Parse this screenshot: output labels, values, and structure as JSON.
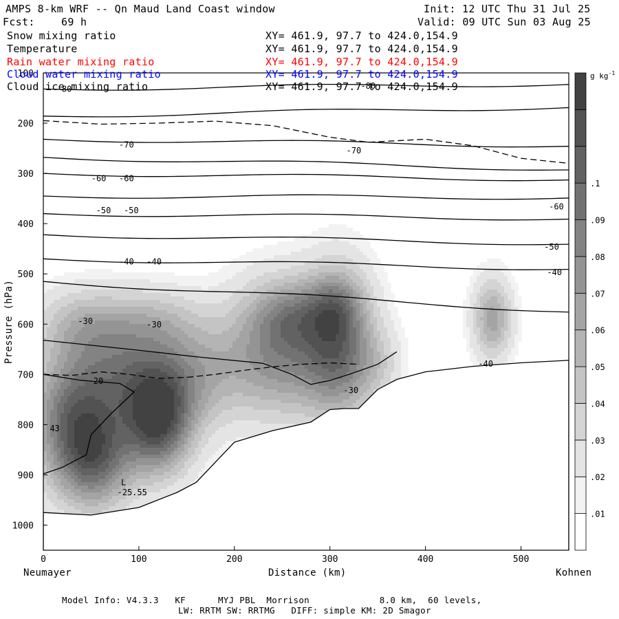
{
  "header": {
    "title": "AMPS 8-km WRF -- Qn Maud Land Coast window",
    "init": "Init: 12 UTC Thu 31 Jul 25",
    "fcst_label": "Fcst:",
    "fcst_value": "69 h",
    "valid": "Valid: 09 UTC Sun 03 Aug 25"
  },
  "fields": [
    {
      "name": "Snow mixing ratio",
      "xy": "XY= 461.9, 97.7 to 424.0,154.9",
      "color": "#000000"
    },
    {
      "name": "Temperature",
      "xy": "XY= 461.9, 97.7 to 424.0,154.9",
      "color": "#000000"
    },
    {
      "name": "Rain water mixing ratio",
      "xy": "XY= 461.9, 97.7 to 424.0,154.9",
      "color": "#ff0000"
    },
    {
      "name": "Cloud water mixing ratio",
      "xy": "XY= 461.9, 97.7 to 424.0,154.9",
      "color": "#0000ff"
    },
    {
      "name": "Cloud ice mixing ratio",
      "xy": "XY= 461.9, 97.7 to 424.0,154.9",
      "color": "#000000"
    }
  ],
  "footer": {
    "line1": "Model Info: V4.3.3   KF      MYJ PBL  Morrison             8.0 km,  60 levels,",
    "line2": "LW: RRTM SW: RRTMG   DIFF: simple KM: 2D Smagor"
  },
  "chart_data": {
    "type": "heatmap",
    "xlabel": "Distance (km)",
    "ylabel": "Pressure (hPa)",
    "x_left_label": "Neumayer",
    "x_right_label": "Kohnen",
    "xlim": [
      0,
      550
    ],
    "ylim": [
      1050,
      100
    ],
    "x_ticks": [
      0,
      100,
      200,
      300,
      400,
      500
    ],
    "y_ticks": [
      100,
      200,
      300,
      400,
      500,
      600,
      700,
      800,
      900,
      1000
    ],
    "colorbar": {
      "unit": "g kg",
      "unit_sup": "-1",
      "levels": [
        0.005,
        0.01,
        0.02,
        0.03,
        0.04,
        0.05,
        0.06,
        0.07,
        0.08,
        0.09,
        0.1,
        0.11
      ],
      "tick_labels": [
        ".01",
        ".02",
        ".03",
        ".04",
        ".05",
        ".06",
        ".07",
        ".08",
        ".09",
        ".1"
      ],
      "colors": [
        "#ffffff",
        "#f2f2f2",
        "#e4e4e4",
        "#d4d4d4",
        "#c4c4c4",
        "#b4b4b4",
        "#a4a4a4",
        "#949494",
        "#838383",
        "#727272",
        "#626262",
        "#525252",
        "#424242"
      ]
    },
    "shading_blobs": [
      {
        "x": 30,
        "p": 780,
        "sx": 32,
        "sp": 95,
        "a": 0.075
      },
      {
        "x": 55,
        "p": 870,
        "sx": 28,
        "sp": 70,
        "a": 0.07
      },
      {
        "x": 85,
        "p": 700,
        "sx": 35,
        "sp": 70,
        "a": 0.05
      },
      {
        "x": 120,
        "p": 800,
        "sx": 25,
        "sp": 70,
        "a": 0.095
      },
      {
        "x": 150,
        "p": 700,
        "sx": 40,
        "sp": 75,
        "a": 0.05
      },
      {
        "x": 45,
        "p": 600,
        "sx": 35,
        "sp": 50,
        "a": 0.035
      },
      {
        "x": 115,
        "p": 590,
        "sx": 35,
        "sp": 45,
        "a": 0.025
      },
      {
        "x": 250,
        "p": 650,
        "sx": 40,
        "sp": 90,
        "a": 0.07
      },
      {
        "x": 260,
        "p": 580,
        "sx": 28,
        "sp": 45,
        "a": 0.03
      },
      {
        "x": 310,
        "p": 640,
        "sx": 25,
        "sp": 100,
        "a": 0.075
      },
      {
        "x": 305,
        "p": 560,
        "sx": 20,
        "sp": 40,
        "a": 0.025
      },
      {
        "x": 350,
        "p": 680,
        "sx": 18,
        "sp": 50,
        "a": 0.02
      },
      {
        "x": 470,
        "p": 590,
        "sx": 14,
        "sp": 55,
        "a": 0.055
      }
    ],
    "terrain": [
      [
        0,
        975
      ],
      [
        50,
        980
      ],
      [
        100,
        965
      ],
      [
        140,
        935
      ],
      [
        160,
        915
      ],
      [
        200,
        835
      ],
      [
        240,
        812
      ],
      [
        280,
        795
      ],
      [
        300,
        770
      ],
      [
        315,
        768
      ],
      [
        330,
        768
      ],
      [
        350,
        730
      ],
      [
        370,
        710
      ],
      [
        400,
        695
      ],
      [
        450,
        684
      ],
      [
        500,
        677
      ],
      [
        550,
        672
      ]
    ],
    "isotherm_labels": [
      {
        "text": "-80",
        "x": 22,
        "p": 132
      },
      {
        "text": "-80",
        "x": 340,
        "p": 126
      },
      {
        "text": "-70",
        "x": 87,
        "p": 243
      },
      {
        "text": "-70",
        "x": 325,
        "p": 255
      },
      {
        "text": "-60",
        "x": 58,
        "p": 310
      },
      {
        "text": "-60",
        "x": 87,
        "p": 310
      },
      {
        "text": "-60",
        "x": 537,
        "p": 366
      },
      {
        "text": "-50",
        "x": 63,
        "p": 374
      },
      {
        "text": "-50",
        "x": 92,
        "p": 374
      },
      {
        "text": "-50",
        "x": 532,
        "p": 446
      },
      {
        "text": "-40",
        "x": 87,
        "p": 476
      },
      {
        "text": "-40",
        "x": 116,
        "p": 476
      },
      {
        "text": "-40",
        "x": 535,
        "p": 497
      },
      {
        "text": "-40",
        "x": 463,
        "p": 679
      },
      {
        "text": "-30",
        "x": 44,
        "p": 594
      },
      {
        "text": "-30",
        "x": 116,
        "p": 601
      },
      {
        "text": "-30",
        "x": 322,
        "p": 732
      },
      {
        "text": "-20",
        "x": 55,
        "p": 713
      },
      {
        "text": "-25.55",
        "x": 93,
        "p": 935
      },
      {
        "text": "L",
        "x": 84,
        "p": 915
      },
      {
        "text": "43",
        "x": 12,
        "p": 808
      }
    ]
  }
}
